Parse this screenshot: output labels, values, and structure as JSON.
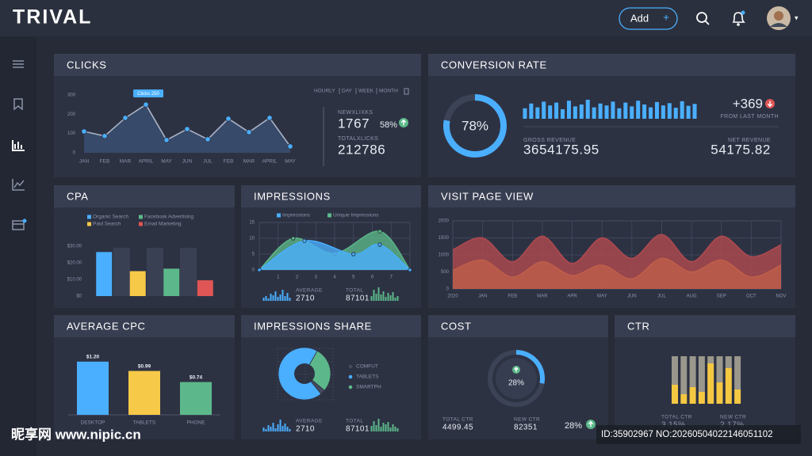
{
  "header": {
    "logo": "TRIVAL",
    "add_button": "Add",
    "add_icon": "+"
  },
  "clicks": {
    "title": "CLICKS",
    "filters": [
      "HOURLY",
      "DAY",
      "WEEK",
      "MONTH"
    ],
    "tooltip": "Clicks 250",
    "chart": {
      "type": "line",
      "categories": [
        "JAN",
        "FEB",
        "MAR",
        "APRIL",
        "MAY",
        "JUN",
        "JUL",
        "FEB",
        "MAR",
        "APRIL",
        "MAY"
      ],
      "values": [
        111,
        87,
        181,
        250,
        66,
        123,
        70,
        177,
        107,
        181,
        33
      ],
      "ylim": [
        0,
        300
      ],
      "yticks": [
        0,
        100,
        200,
        300
      ],
      "color": "#a9b3c6",
      "marker_color": "#4aafff",
      "fill": "#3b4f70"
    },
    "stats": [
      {
        "label": "NEWXLIXKS",
        "value": "1767",
        "change": "58%"
      },
      {
        "label": "TOTALXLICKS",
        "value": "212786"
      }
    ]
  },
  "conversion": {
    "title": "CONVERSION RATE",
    "rate": {
      "type": "gauge",
      "value": 78,
      "value_label": "78%",
      "color": "#4aafff"
    },
    "bars": {
      "type": "bar",
      "color": "#4aafff",
      "values": [
        55,
        80,
        60,
        90,
        70,
        85,
        50,
        95,
        65,
        75,
        100,
        60,
        80,
        70,
        90,
        55,
        85,
        65,
        95,
        75,
        60,
        88,
        70,
        82,
        58,
        92,
        68,
        78
      ]
    },
    "change": "+369",
    "change_label": "FROM LAST MONTH",
    "gross_label": "GROSS REVENUE",
    "gross": "3654175.95",
    "net_label": "NET REVENUE",
    "net": "54175.82"
  },
  "cpa": {
    "title": "CPA",
    "chart": {
      "type": "bar",
      "series": [
        {
          "name": "Organic Search",
          "color": "#4aafff",
          "values": [
            26.5
          ]
        },
        {
          "name": "Paid Search",
          "color": "#f7c948",
          "values": [
            15
          ]
        },
        {
          "name": "Facebook Advertising",
          "color": "#5cb88a",
          "values": [
            16.5
          ]
        },
        {
          "name": "Email Marketing",
          "color": "#e05555",
          "values": [
            9.5
          ]
        }
      ],
      "ylim": [
        0,
        30
      ],
      "yticks": [
        {
          "value": 0,
          "label": "$0"
        },
        {
          "value": 10,
          "label": "$10.00"
        },
        {
          "value": 20,
          "label": "$20.00"
        },
        {
          "value": 30,
          "label": "$30.00"
        }
      ]
    }
  },
  "impressions": {
    "title": "IMPRESSIONS",
    "chart": {
      "type": "area",
      "series": [
        {
          "name": "Impressions",
          "color": "#4aafff",
          "x": [
            0,
            2.4,
            5,
            6.4,
            8
          ],
          "values": [
            0,
            9.2,
            5,
            8,
            0
          ]
        },
        {
          "name": "Unique Impressions",
          "color": "#5cb88a",
          "x": [
            0,
            1.8,
            4,
            6.4,
            8
          ],
          "values": [
            0,
            10,
            5.2,
            12.2,
            0
          ]
        }
      ],
      "xlim": [
        0,
        8
      ],
      "xticks": [
        1,
        2,
        3,
        4,
        5,
        6,
        7
      ],
      "ylim": [
        0,
        15
      ],
      "yticks": [
        0,
        5,
        10,
        15
      ],
      "grid": true,
      "markers": true
    },
    "stats": [
      {
        "label": "AVERAGE",
        "value": "2710",
        "spark": {
          "type": "bar",
          "color": "#4aafff",
          "values": [
            4,
            6,
            3,
            9,
            7,
            12,
            5,
            8,
            14,
            6,
            10,
            4
          ]
        }
      },
      {
        "label": "TOTAL",
        "value": "87101",
        "spark": {
          "type": "bar",
          "color": "#5cb88a",
          "values": [
            6,
            14,
            9,
            17,
            8,
            12,
            5,
            10,
            7,
            11,
            4,
            6
          ]
        }
      }
    ]
  },
  "visits": {
    "title": "VISIT PAGE VIEW",
    "chart": {
      "type": "area",
      "categories": [
        "2020",
        "JAN",
        "FEB",
        "MAR",
        "APR",
        "MAY",
        "JUN",
        "JUL",
        "AUG",
        "SEP",
        "OCT",
        "NOV"
      ],
      "series": [
        {
          "color": "#b34a4f",
          "values": [
            1150,
            1500,
            800,
            1550,
            750,
            1500,
            900,
            1600,
            800,
            1550,
            950,
            1300
          ]
        },
        {
          "color": "#e9a83a",
          "values": [
            550,
            850,
            350,
            800,
            400,
            700,
            300,
            900,
            500,
            850,
            350,
            700
          ]
        }
      ],
      "ylim": [
        0,
        2000
      ],
      "yticks": [
        0,
        500,
        1000,
        1500,
        2000
      ],
      "grid": true
    }
  },
  "cpc": {
    "title": "AVERAGE CPC",
    "chart": {
      "type": "bar",
      "categories": [
        "DESKTOP",
        "TABLETS",
        "PHONE"
      ],
      "values": [
        1.2,
        0.99,
        0.74
      ],
      "value_labels": [
        "$1.20",
        "$0.99",
        "$0.74"
      ],
      "colors": [
        "#4aafff",
        "#f7c948",
        "#5cb88a"
      ]
    }
  },
  "share": {
    "title": "IMPRESSIONS SHARE",
    "chart": {
      "type": "pie",
      "categories": [
        "COMFUT",
        "TABLETS",
        "SMARTPH"
      ],
      "values": [
        3,
        69,
        28
      ],
      "colors": [
        "#454b5e",
        "#4aafff",
        "#5cb88a"
      ],
      "donut": true
    },
    "stats": [
      {
        "label": "AVERAGE",
        "value": "2710",
        "spark": {
          "type": "bar",
          "color": "#4aafff",
          "values": [
            5,
            3,
            8,
            6,
            11,
            4,
            9,
            15,
            7,
            10,
            6,
            3
          ]
        }
      },
      {
        "label": "TOTAL",
        "value": "87101",
        "spark": {
          "type": "bar",
          "color": "#5cb88a",
          "values": [
            7,
            13,
            8,
            16,
            6,
            11,
            9,
            12,
            5,
            9,
            6,
            4
          ]
        }
      }
    ]
  },
  "cost": {
    "title": "COST",
    "gauge": {
      "type": "gauge",
      "value": 28,
      "value_label": "28%",
      "color": "#4aafff"
    },
    "total_label": "TOTAL CTR",
    "total": "4499.45",
    "new_label": "NEW CTR",
    "new": "82351",
    "change": "28%"
  },
  "ctr": {
    "title": "CTR",
    "chart": {
      "type": "stacked_bar",
      "series": [
        {
          "color": "#f5c842",
          "values": [
            40,
            20,
            35,
            25,
            85,
            45,
            75,
            30
          ]
        },
        {
          "color": "#9a978c",
          "values": [
            60,
            80,
            65,
            75,
            15,
            55,
            25,
            70
          ]
        }
      ],
      "ylim": [
        0,
        100
      ]
    },
    "total_label": "TOTAL CTR",
    "total": "3.15%",
    "new_label": "NEW CTR",
    "new": "2.17%"
  },
  "watermark": {
    "site": "昵享网 www.nipic.cn",
    "id": "ID:35902967 NO:20260504022146051102"
  }
}
